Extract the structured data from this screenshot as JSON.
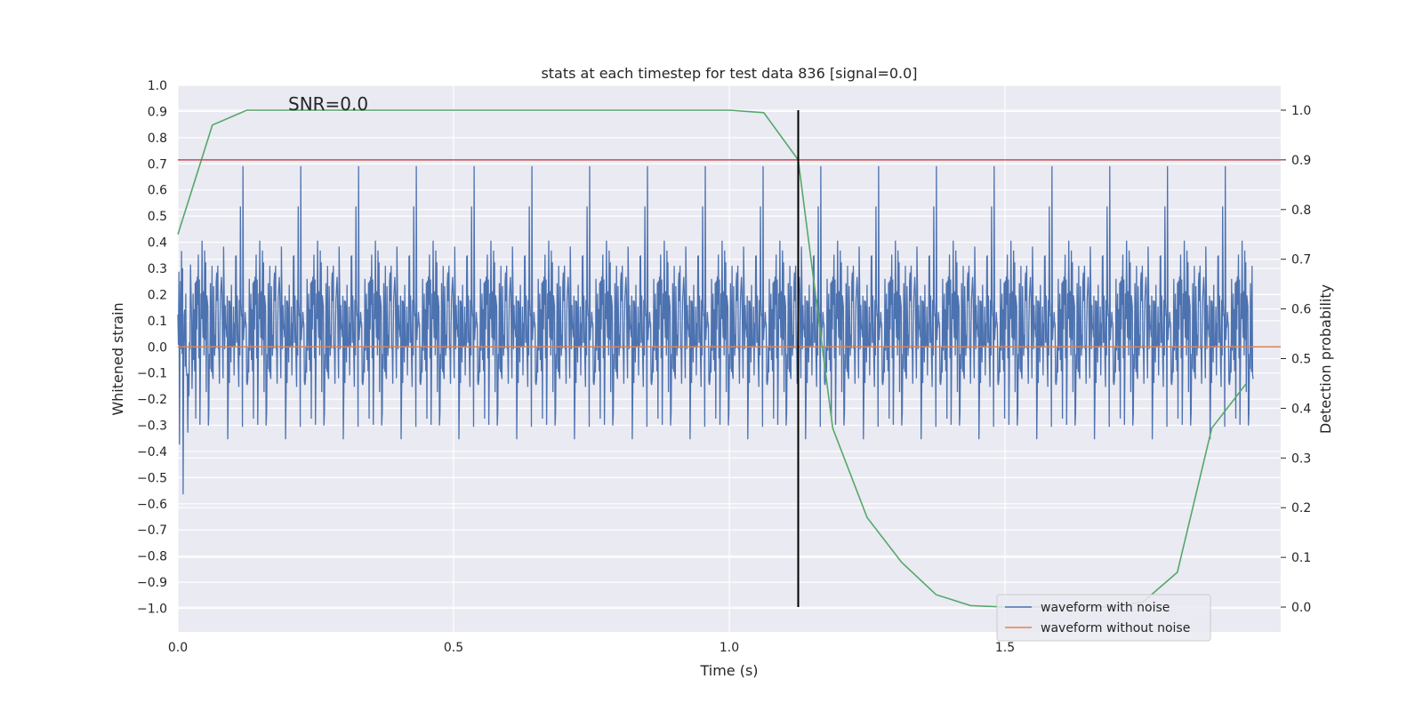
{
  "chart_data": {
    "type": "line",
    "title": "stats at each timestep for test data 836 [signal=0.0]",
    "xlabel": "Time (s)",
    "ylabel_left": "Whitened strain",
    "ylabel_right": "Detection probability",
    "xlim": [
      0.0,
      2.0
    ],
    "ylim_left": [
      -1.09,
      1.0
    ],
    "ylim_right": [
      -0.05,
      1.05
    ],
    "xticks": [
      0.0,
      0.5,
      1.0,
      1.5
    ],
    "xtick_labels": [
      "0.0",
      "0.5",
      "1.0",
      "1.5"
    ],
    "yticks_left": [
      -1.0,
      -0.9,
      -0.8,
      -0.7,
      -0.6,
      -0.5,
      -0.4,
      -0.3,
      -0.2,
      -0.1,
      0.0,
      0.1,
      0.2,
      0.3,
      0.4,
      0.5,
      0.6,
      0.7,
      0.8,
      0.9,
      1.0
    ],
    "ytick_labels_left": [
      "−1.0",
      "−0.9",
      "−0.8",
      "−0.7",
      "−0.6",
      "−0.5",
      "−0.4",
      "−0.3",
      "−0.2",
      "−0.1",
      "0.0",
      "0.1",
      "0.2",
      "0.3",
      "0.4",
      "0.5",
      "0.6",
      "0.7",
      "0.8",
      "0.9",
      "1.0"
    ],
    "yticks_right": [
      0.0,
      0.1,
      0.2,
      0.3,
      0.4,
      0.5,
      0.6,
      0.7,
      0.8,
      0.9,
      1.0
    ],
    "ytick_labels_right": [
      "0.0",
      "0.1",
      "0.2",
      "0.3",
      "0.4",
      "0.5",
      "0.6",
      "0.7",
      "0.8",
      "0.9",
      "1.0"
    ],
    "annotation": "SNR=0.0",
    "grid": true,
    "legend_position": "lower-right",
    "legend": [
      "waveform with noise",
      "waveform without noise"
    ],
    "series": [
      {
        "name": "waveform with noise",
        "axis": "left",
        "color": "#4c72b0",
        "sampling": "dense noisy whitened strain, approx. 2048 samples over 0–2 s, amplitude mostly within ±0.5 with spikes to about ±0.9"
      },
      {
        "name": "waveform without noise",
        "axis": "left",
        "color": "#dd8452",
        "x": [
          0.0,
          2.0
        ],
        "y": [
          0.0,
          0.0
        ]
      },
      {
        "axis": "right",
        "color": "#55a868",
        "x": [
          0.0,
          0.0625,
          0.125,
          0.1875,
          0.25,
          0.3125,
          0.375,
          0.4375,
          0.5,
          0.5625,
          0.625,
          0.6875,
          0.75,
          0.8125,
          0.875,
          0.9375,
          1.0,
          1.0625,
          1.125,
          1.1875,
          1.25,
          1.3125,
          1.375,
          1.4375,
          1.5,
          1.5625,
          1.625,
          1.6875,
          1.75,
          1.8125,
          1.875,
          1.9375
        ],
        "y": [
          0.75,
          0.97,
          1.0,
          1.0,
          1.0,
          1.0,
          1.0,
          1.0,
          1.0,
          1.0,
          1.0,
          1.0,
          1.0,
          1.0,
          1.0,
          1.0,
          1.0,
          0.995,
          0.9,
          0.36,
          0.18,
          0.09,
          0.025,
          0.003,
          0.0,
          0.0,
          0.0,
          0.0,
          0.01,
          0.07,
          0.36,
          0.45
        ]
      }
    ],
    "threshold_line": {
      "axis": "right",
      "y": 0.9,
      "color": "#c44e52"
    },
    "vertical_line": {
      "x": 1.125,
      "ymin": 0.0,
      "ymax": 1.0,
      "axis": "right",
      "color": "#000000"
    }
  }
}
